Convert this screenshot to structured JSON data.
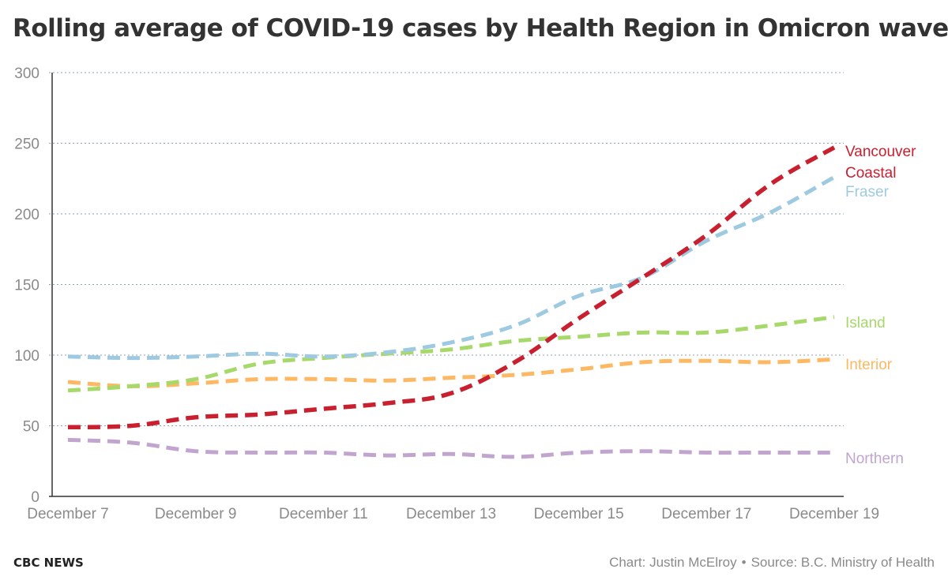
{
  "title": "Rolling average of COVID-19 cases by Health Region in Omicron wave",
  "footer": {
    "brand": "CBC NEWS",
    "credit": "Chart: Justin McElroy",
    "separator": "•",
    "source": "Source: B.C. Ministry of Health"
  },
  "chart_data": {
    "type": "line",
    "title": "Rolling average of COVID-19 cases by Health Region in Omicron wave",
    "xlabel": "",
    "ylabel": "",
    "ylim": [
      0,
      300
    ],
    "yticks": [
      0,
      50,
      100,
      150,
      200,
      250,
      300
    ],
    "x": [
      "December 7",
      "December 8",
      "December 9",
      "December 10",
      "December 11",
      "December 12",
      "December 13",
      "December 14",
      "December 15",
      "December 16",
      "December 17",
      "December 18",
      "December 19"
    ],
    "xtick_labels": [
      "December 7",
      "December 9",
      "December 11",
      "December 13",
      "December 15",
      "December 17",
      "December 19"
    ],
    "grid": true,
    "line_style": "dashed",
    "legend": "direct labels at line ends (right)",
    "series": [
      {
        "name": "Vancouver Coastal",
        "label_lines": [
          "Vancouver",
          "Coastal"
        ],
        "color": "#c8202f",
        "values": [
          49,
          50,
          56,
          58,
          62,
          66,
          73,
          95,
          126,
          155,
          185,
          221,
          247
        ]
      },
      {
        "name": "Fraser",
        "label_lines": [
          "Fraser"
        ],
        "color": "#9ecae1",
        "values": [
          99,
          98,
          99,
          101,
          99,
          102,
          109,
          121,
          142,
          155,
          181,
          201,
          226
        ]
      },
      {
        "name": "Island",
        "label_lines": [
          "Island"
        ],
        "color": "#a6d96a",
        "values": [
          75,
          78,
          83,
          94,
          98,
          101,
          104,
          110,
          113,
          116,
          116,
          121,
          127
        ]
      },
      {
        "name": "Interior",
        "label_lines": [
          "Interior"
        ],
        "color": "#fdb863",
        "values": [
          81,
          78,
          80,
          83,
          83,
          82,
          84,
          86,
          90,
          95,
          96,
          95,
          97
        ]
      },
      {
        "name": "Northern",
        "label_lines": [
          "Northern"
        ],
        "color": "#c2a5cf",
        "values": [
          40,
          38,
          32,
          31,
          31,
          29,
          30,
          28,
          31,
          32,
          31,
          31,
          31
        ]
      }
    ]
  }
}
